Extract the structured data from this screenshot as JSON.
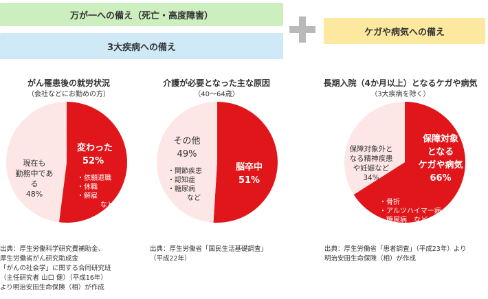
{
  "banners": {
    "death": "万が一への備え（死亡・高度障害）",
    "three_diseases": "3大疾病への備え",
    "injury": "ケガや病気への備え"
  },
  "colors": {
    "red": "#e0161a",
    "pink": "#fde6e6",
    "plus": "#b9b9b9"
  },
  "chart_data": [
    {
      "type": "pie",
      "title": "がん罹患後の就労状況",
      "subtitle": "（会社などにお勤めの方）",
      "slices": [
        {
          "label": "変わった",
          "value": 52,
          "color": "#e0161a",
          "detail": [
            "・依願退職",
            "・休職",
            "・解雇",
            "など"
          ]
        },
        {
          "label": "現在も勤務中である",
          "value": 48,
          "color": "#fde6e6"
        }
      ],
      "source": [
        "出典：厚生労働科学研究費補助金、",
        "厚生労働省がん研究助成金",
        "「がんの社会学」に関する合同研究班",
        "（主任研究者 山口 健）（平成16年）",
        "より明治安田生命保険（相）が作成"
      ]
    },
    {
      "type": "pie",
      "title": "介護が必要となった主な原因",
      "subtitle": "（40～64歳）",
      "slices": [
        {
          "label": "脳卒中",
          "value": 51,
          "color": "#e0161a"
        },
        {
          "label": "その他",
          "value": 49,
          "color": "#fde6e6",
          "detail": [
            "・関節疾患",
            "・認知症",
            "・糖尿病",
            "など"
          ]
        }
      ],
      "source": [
        "出典：厚生労働省「国民生活基礎調査」",
        "（平成22年）"
      ]
    },
    {
      "type": "pie",
      "title": "長期入院（4か月以上）となるケガや病気",
      "subtitle": "（3大疾病を除く）",
      "slices": [
        {
          "label": "保障対象となるケガや病気",
          "value": 66,
          "color": "#e0161a",
          "detail": [
            "・骨折",
            "・アルツハイマー病",
            "・糖尿病　など"
          ]
        },
        {
          "label": "保障対象外となる精神疾患や妊娠など",
          "value": 34,
          "color": "#fde6e6"
        }
      ],
      "source": [
        "出典：厚生労働省「患者調査」（平成23年）より",
        "明治安田生命保険（相）が作成"
      ]
    }
  ],
  "labels": {
    "p1_red_name": "変わった",
    "p1_red_pct": "52%",
    "p1_pink": [
      "現在も",
      "勤務中である",
      "48%"
    ],
    "p2_red_name": "脳卒中",
    "p2_red_pct": "51%",
    "p2_pink_name": "その他",
    "p2_pink_pct": "49%",
    "p3_red": [
      "保障対象",
      "となる",
      "ケガや病気",
      "66%"
    ],
    "p3_pink": [
      "保障対象外と",
      "なる精神疾患",
      "や妊娠など",
      "34%"
    ]
  }
}
